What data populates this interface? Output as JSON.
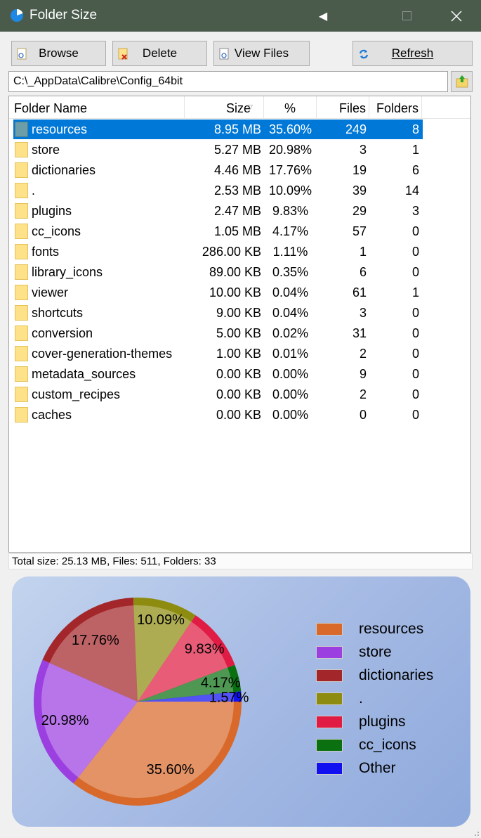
{
  "window": {
    "title": "Folder Size"
  },
  "toolbar": {
    "browse_label": "Browse",
    "delete_label": "Delete",
    "view_files_label": "View Files",
    "refresh_label": "Refresh"
  },
  "path": {
    "value": "C:\\_AppData\\Calibre\\Config_64bit"
  },
  "list": {
    "columns": {
      "name": "Folder Name",
      "size": "Size",
      "percent": "%",
      "files": "Files",
      "folders": "Folders"
    },
    "rows": [
      {
        "name": "resources",
        "size": "8.95 MB",
        "percent": "35.60%",
        "files": "249",
        "folders": "8",
        "selected": true
      },
      {
        "name": "store",
        "size": "5.27 MB",
        "percent": "20.98%",
        "files": "3",
        "folders": "1"
      },
      {
        "name": "dictionaries",
        "size": "4.46 MB",
        "percent": "17.76%",
        "files": "19",
        "folders": "6"
      },
      {
        "name": ".",
        "size": "2.53 MB",
        "percent": "10.09%",
        "files": "39",
        "folders": "14"
      },
      {
        "name": "plugins",
        "size": "2.47 MB",
        "percent": "9.83%",
        "files": "29",
        "folders": "3"
      },
      {
        "name": "cc_icons",
        "size": "1.05 MB",
        "percent": "4.17%",
        "files": "57",
        "folders": "0"
      },
      {
        "name": "fonts",
        "size": "286.00 KB",
        "percent": "1.11%",
        "files": "1",
        "folders": "0"
      },
      {
        "name": "library_icons",
        "size": "89.00 KB",
        "percent": "0.35%",
        "files": "6",
        "folders": "0"
      },
      {
        "name": "viewer",
        "size": "10.00 KB",
        "percent": "0.04%",
        "files": "61",
        "folders": "1"
      },
      {
        "name": "shortcuts",
        "size": "9.00 KB",
        "percent": "0.04%",
        "files": "3",
        "folders": "0"
      },
      {
        "name": "conversion",
        "size": "5.00 KB",
        "percent": "0.02%",
        "files": "31",
        "folders": "0"
      },
      {
        "name": "cover-generation-themes",
        "size": "1.00 KB",
        "percent": "0.01%",
        "files": "2",
        "folders": "0"
      },
      {
        "name": "metadata_sources",
        "size": "0.00 KB",
        "percent": "0.00%",
        "files": "9",
        "folders": "0"
      },
      {
        "name": "custom_recipes",
        "size": "0.00 KB",
        "percent": "0.00%",
        "files": "2",
        "folders": "0"
      },
      {
        "name": "caches",
        "size": "0.00 KB",
        "percent": "0.00%",
        "files": "0",
        "folders": "0"
      }
    ]
  },
  "status": {
    "text": "Total size: 25.13 MB, Files: 511, Folders: 33"
  },
  "colors": {
    "titlebar": "#4a5b4c",
    "selection": "#0078d7",
    "folder": "#fde28a"
  },
  "chart_data": {
    "type": "pie",
    "labels": [
      "resources",
      "store",
      "dictionaries",
      ".",
      "plugins",
      "cc_icons",
      "Other"
    ],
    "values": [
      35.6,
      20.98,
      17.76,
      10.09,
      9.83,
      4.17,
      1.57
    ],
    "value_labels": [
      "35.60%",
      "20.98%",
      "17.76%",
      "10.09%",
      "9.83%",
      "4.17%",
      "1.57%"
    ],
    "colors": [
      "#d8692a",
      "#9b3fe0",
      "#a3262a",
      "#8e8c10",
      "#e01c44",
      "#0b7010",
      "#1010f0"
    ],
    "legend_position": "right"
  }
}
